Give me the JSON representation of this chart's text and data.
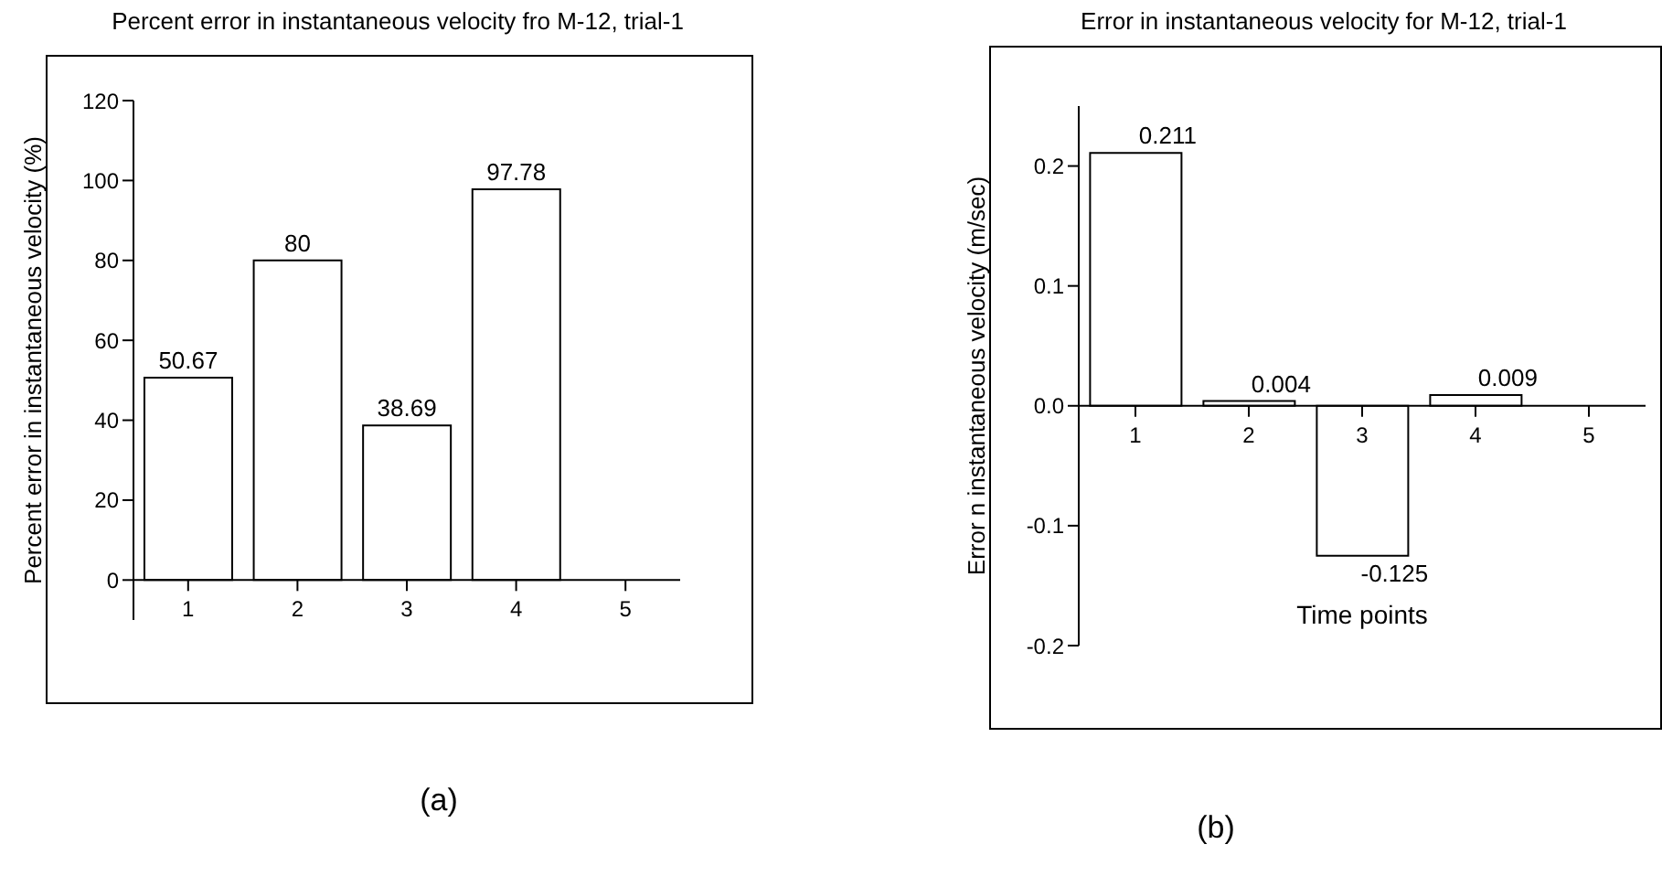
{
  "chart_data": [
    {
      "type": "bar",
      "title": "Percent error in instantaneous velocity fro M-12, trial-1",
      "ylabel": "Percent error in instantaneous velocity (%)",
      "categories": [
        "1",
        "2",
        "3",
        "4",
        "5"
      ],
      "values": [
        50.67,
        80,
        38.69,
        97.78,
        null
      ],
      "color": "#ffffff",
      "ylim": [
        -10,
        120
      ],
      "yticks": [
        0,
        20,
        40,
        60,
        80,
        100,
        120
      ],
      "data_labels": true,
      "annotations": [
        "(a)"
      ]
    },
    {
      "type": "bar",
      "title": "Error in instantaneous velocity for M-12, trial-1",
      "xlabel": "Time points",
      "ylabel": "Error n instantaneous velocity (m/sec)",
      "categories": [
        "1",
        "2",
        "3",
        "4",
        "5"
      ],
      "values": [
        0.211,
        0.004,
        -0.125,
        0.009,
        null
      ],
      "color": "#ffffff",
      "ylim": [
        -0.2,
        0.25
      ],
      "yticks": [
        {
          "value": -0.2,
          "label": "-0.2"
        },
        {
          "value": -0.1,
          "label": "-0.1"
        },
        {
          "value": 0,
          "label": "0.0"
        },
        {
          "value": 0.1,
          "label": "0.1"
        },
        {
          "value": 0.2,
          "label": "0.2"
        }
      ],
      "data_labels": true,
      "annotations": [
        "(b)"
      ]
    }
  ]
}
